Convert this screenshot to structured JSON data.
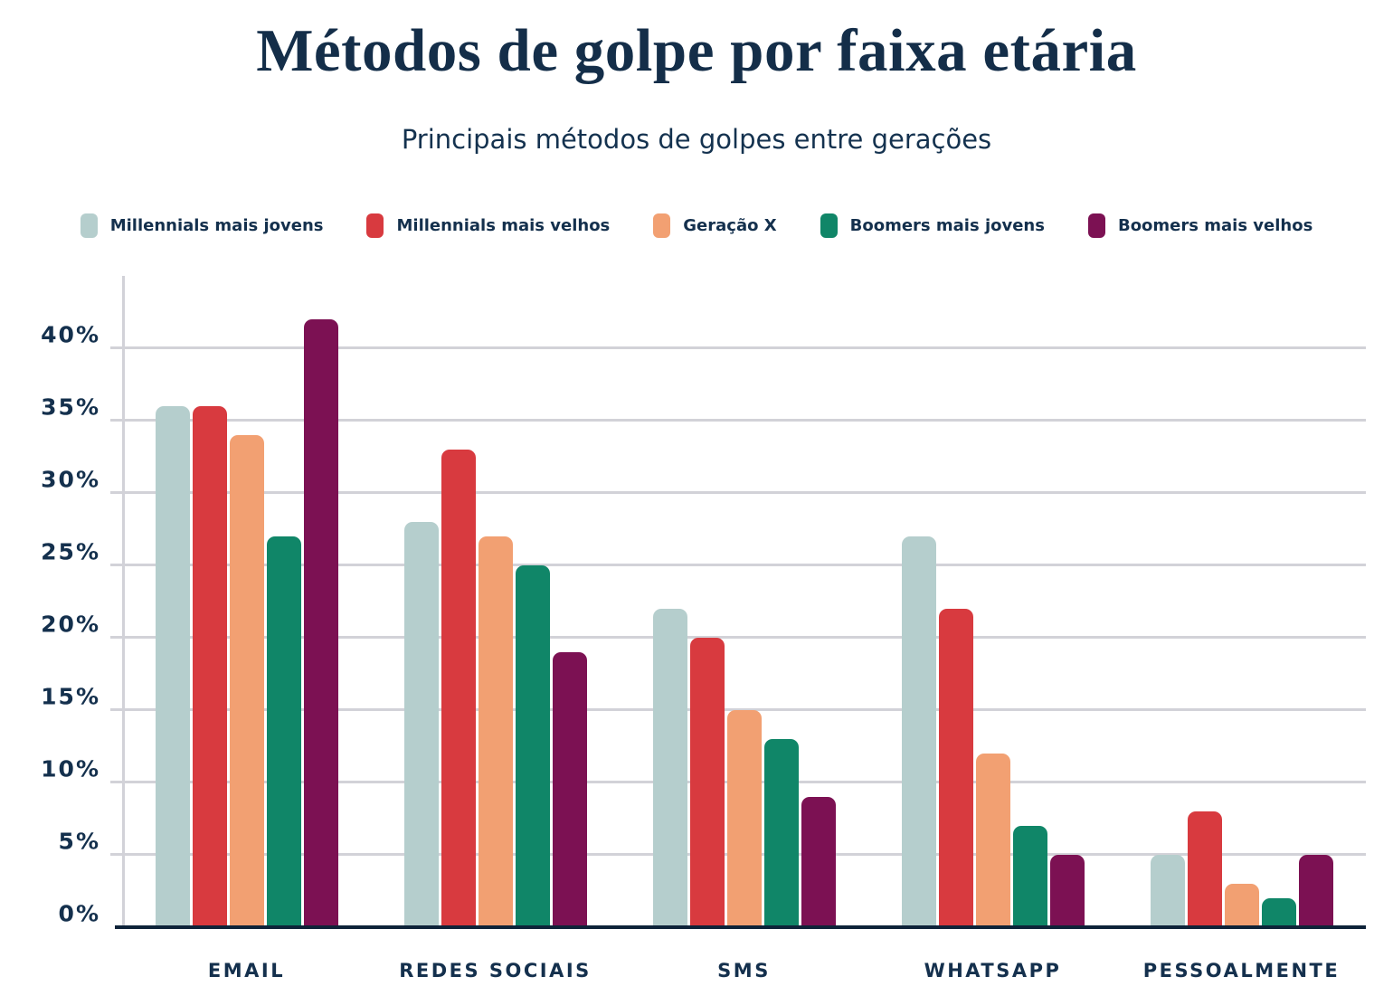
{
  "page": {
    "background_color": "#ffffff",
    "text_color": "#14304d",
    "title_color": "#142e49"
  },
  "axis": {
    "gridline_color": "#d2d2d8",
    "baseline_color": "#0e2339"
  },
  "chart_data": {
    "type": "bar",
    "title": "Métodos de golpe por faixa etária",
    "subtitle": "Principais métodos de golpes entre gerações",
    "categories": [
      "EMAIL",
      "REDES SOCIAIS",
      "SMS",
      "WHATSAPP",
      "PESSOALMENTE"
    ],
    "series": [
      {
        "name": "Millennials mais jovens",
        "color": "#b5cecd",
        "values": [
          36,
          28,
          22,
          27,
          5
        ]
      },
      {
        "name": "Millennials mais velhos",
        "color": "#d83a3f",
        "values": [
          36,
          33,
          20,
          22,
          8
        ]
      },
      {
        "name": "Geração X",
        "color": "#f2a072",
        "values": [
          34,
          27,
          15,
          12,
          3
        ]
      },
      {
        "name": "Boomers mais jovens",
        "color": "#108668",
        "values": [
          27,
          25,
          13,
          7,
          2
        ]
      },
      {
        "name": "Boomers mais velhos",
        "color": "#7c1153",
        "values": [
          42,
          19,
          9,
          5,
          5
        ]
      }
    ],
    "xlabel": "",
    "ylabel": "",
    "ylim": [
      0,
      45
    ],
    "ytick_step": 5,
    "ytick_labels": [
      "0%",
      "5%",
      "10%",
      "15%",
      "20%",
      "25%",
      "30%",
      "35%",
      "40%"
    ],
    "grid": true,
    "legend_position": "top"
  }
}
